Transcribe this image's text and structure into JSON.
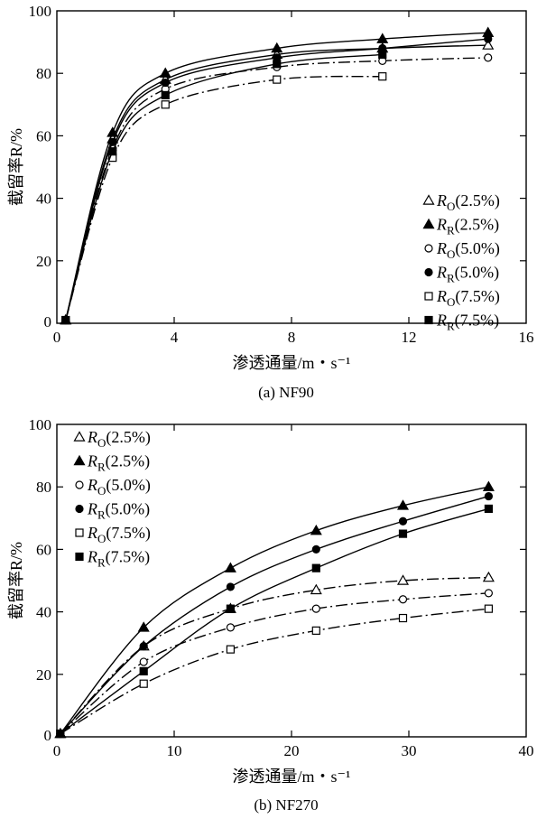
{
  "chart_data": [
    {
      "type": "line",
      "caption": "(a) NF90",
      "xlabel": "渗透通量/m・s⁻¹",
      "ylabel": "截留率R/%",
      "xlim": [
        0,
        16
      ],
      "ylim": [
        0,
        100
      ],
      "xticks": [
        "0",
        "4",
        "8",
        "12",
        "16"
      ],
      "yticks": [
        "0",
        "20",
        "40",
        "60",
        "80",
        "100"
      ],
      "legend_position": "right-middle",
      "series": [
        {
          "name": "R_O(2.5%)",
          "sym": "O",
          "pct": "(2.5%)",
          "marker": "triangle-open",
          "line": "solid",
          "x": [
            0.3,
            1.9,
            3.7,
            7.5,
            11.1,
            14.7
          ],
          "y": [
            1,
            59,
            78,
            86,
            88,
            89
          ]
        },
        {
          "name": "R_R(2.5%)",
          "sym": "R",
          "pct": "(2.5%)",
          "marker": "triangle-filled",
          "line": "solid",
          "x": [
            0.3,
            1.9,
            3.7,
            7.5,
            11.1,
            14.7
          ],
          "y": [
            1,
            61,
            80,
            88,
            91,
            93
          ]
        },
        {
          "name": "R_O(5.0%)",
          "sym": "O",
          "pct": "(5.0%)",
          "marker": "circle-open",
          "line": "dashdot",
          "x": [
            0.3,
            1.9,
            3.7,
            7.5,
            11.1,
            14.7
          ],
          "y": [
            1,
            56,
            75,
            82,
            84,
            85
          ]
        },
        {
          "name": "R_R(5.0%)",
          "sym": "R",
          "pct": "(5.0%)",
          "marker": "circle-filled",
          "line": "solid",
          "x": [
            0.3,
            1.9,
            3.7,
            7.5,
            11.1,
            14.7
          ],
          "y": [
            1,
            58,
            77,
            85,
            88,
            91
          ]
        },
        {
          "name": "R_O(7.5%)",
          "sym": "O",
          "pct": "(7.5%)",
          "marker": "square-open",
          "line": "dashdot",
          "x": [
            0.3,
            1.9,
            3.7,
            7.5,
            11.1
          ],
          "y": [
            1,
            53,
            70,
            78,
            79
          ]
        },
        {
          "name": "R_R(7.5%)",
          "sym": "R",
          "pct": "(7.5%)",
          "marker": "square-filled",
          "line": "solid",
          "x": [
            0.3,
            1.9,
            3.7,
            7.5,
            11.1
          ],
          "y": [
            1,
            55,
            73,
            83,
            86
          ]
        }
      ]
    },
    {
      "type": "line",
      "caption": "(b) NF270",
      "xlabel": "渗透通量/m・s⁻¹",
      "ylabel": "截留率R/%",
      "xlim": [
        0,
        40
      ],
      "ylim": [
        0,
        100
      ],
      "xticks": [
        "0",
        "10",
        "20",
        "30",
        "40"
      ],
      "yticks": [
        "0",
        "20",
        "40",
        "60",
        "80",
        "100"
      ],
      "legend_position": "top-left",
      "series": [
        {
          "name": "R_O(2.5%)",
          "sym": "O",
          "pct": "(2.5%)",
          "marker": "triangle-open",
          "line": "dashdot",
          "x": [
            0.3,
            7.4,
            14.8,
            22.1,
            29.5,
            36.8
          ],
          "y": [
            1,
            29,
            41,
            47,
            50,
            51
          ]
        },
        {
          "name": "R_R(2.5%)",
          "sym": "R",
          "pct": "(2.5%)",
          "marker": "triangle-filled",
          "line": "solid",
          "x": [
            0.3,
            7.4,
            14.8,
            22.1,
            29.5,
            36.8
          ],
          "y": [
            1,
            35,
            54,
            66,
            74,
            80
          ]
        },
        {
          "name": "R_O(5.0%)",
          "sym": "O",
          "pct": "(5.0%)",
          "marker": "circle-open",
          "line": "dashdot",
          "x": [
            0.3,
            7.4,
            14.8,
            22.1,
            29.5,
            36.8
          ],
          "y": [
            1,
            24,
            35,
            41,
            44,
            46
          ]
        },
        {
          "name": "R_R(5.0%)",
          "sym": "R",
          "pct": "(5.0%)",
          "marker": "circle-filled",
          "line": "solid",
          "x": [
            0.3,
            7.4,
            14.8,
            22.1,
            29.5,
            36.8
          ],
          "y": [
            1,
            29,
            48,
            60,
            69,
            77
          ]
        },
        {
          "name": "R_O(7.5%)",
          "sym": "O",
          "pct": "(7.5%)",
          "marker": "square-open",
          "line": "dashdot",
          "x": [
            0.3,
            7.4,
            14.8,
            22.1,
            29.5,
            36.8
          ],
          "y": [
            1,
            17,
            28,
            34,
            38,
            41
          ]
        },
        {
          "name": "R_R(7.5%)",
          "sym": "R",
          "pct": "(7.5%)",
          "marker": "square-filled",
          "line": "solid",
          "x": [
            0.3,
            7.4,
            14.8,
            22.1,
            29.5,
            36.8
          ],
          "y": [
            1,
            21,
            41,
            54,
            65,
            73
          ]
        }
      ]
    }
  ]
}
